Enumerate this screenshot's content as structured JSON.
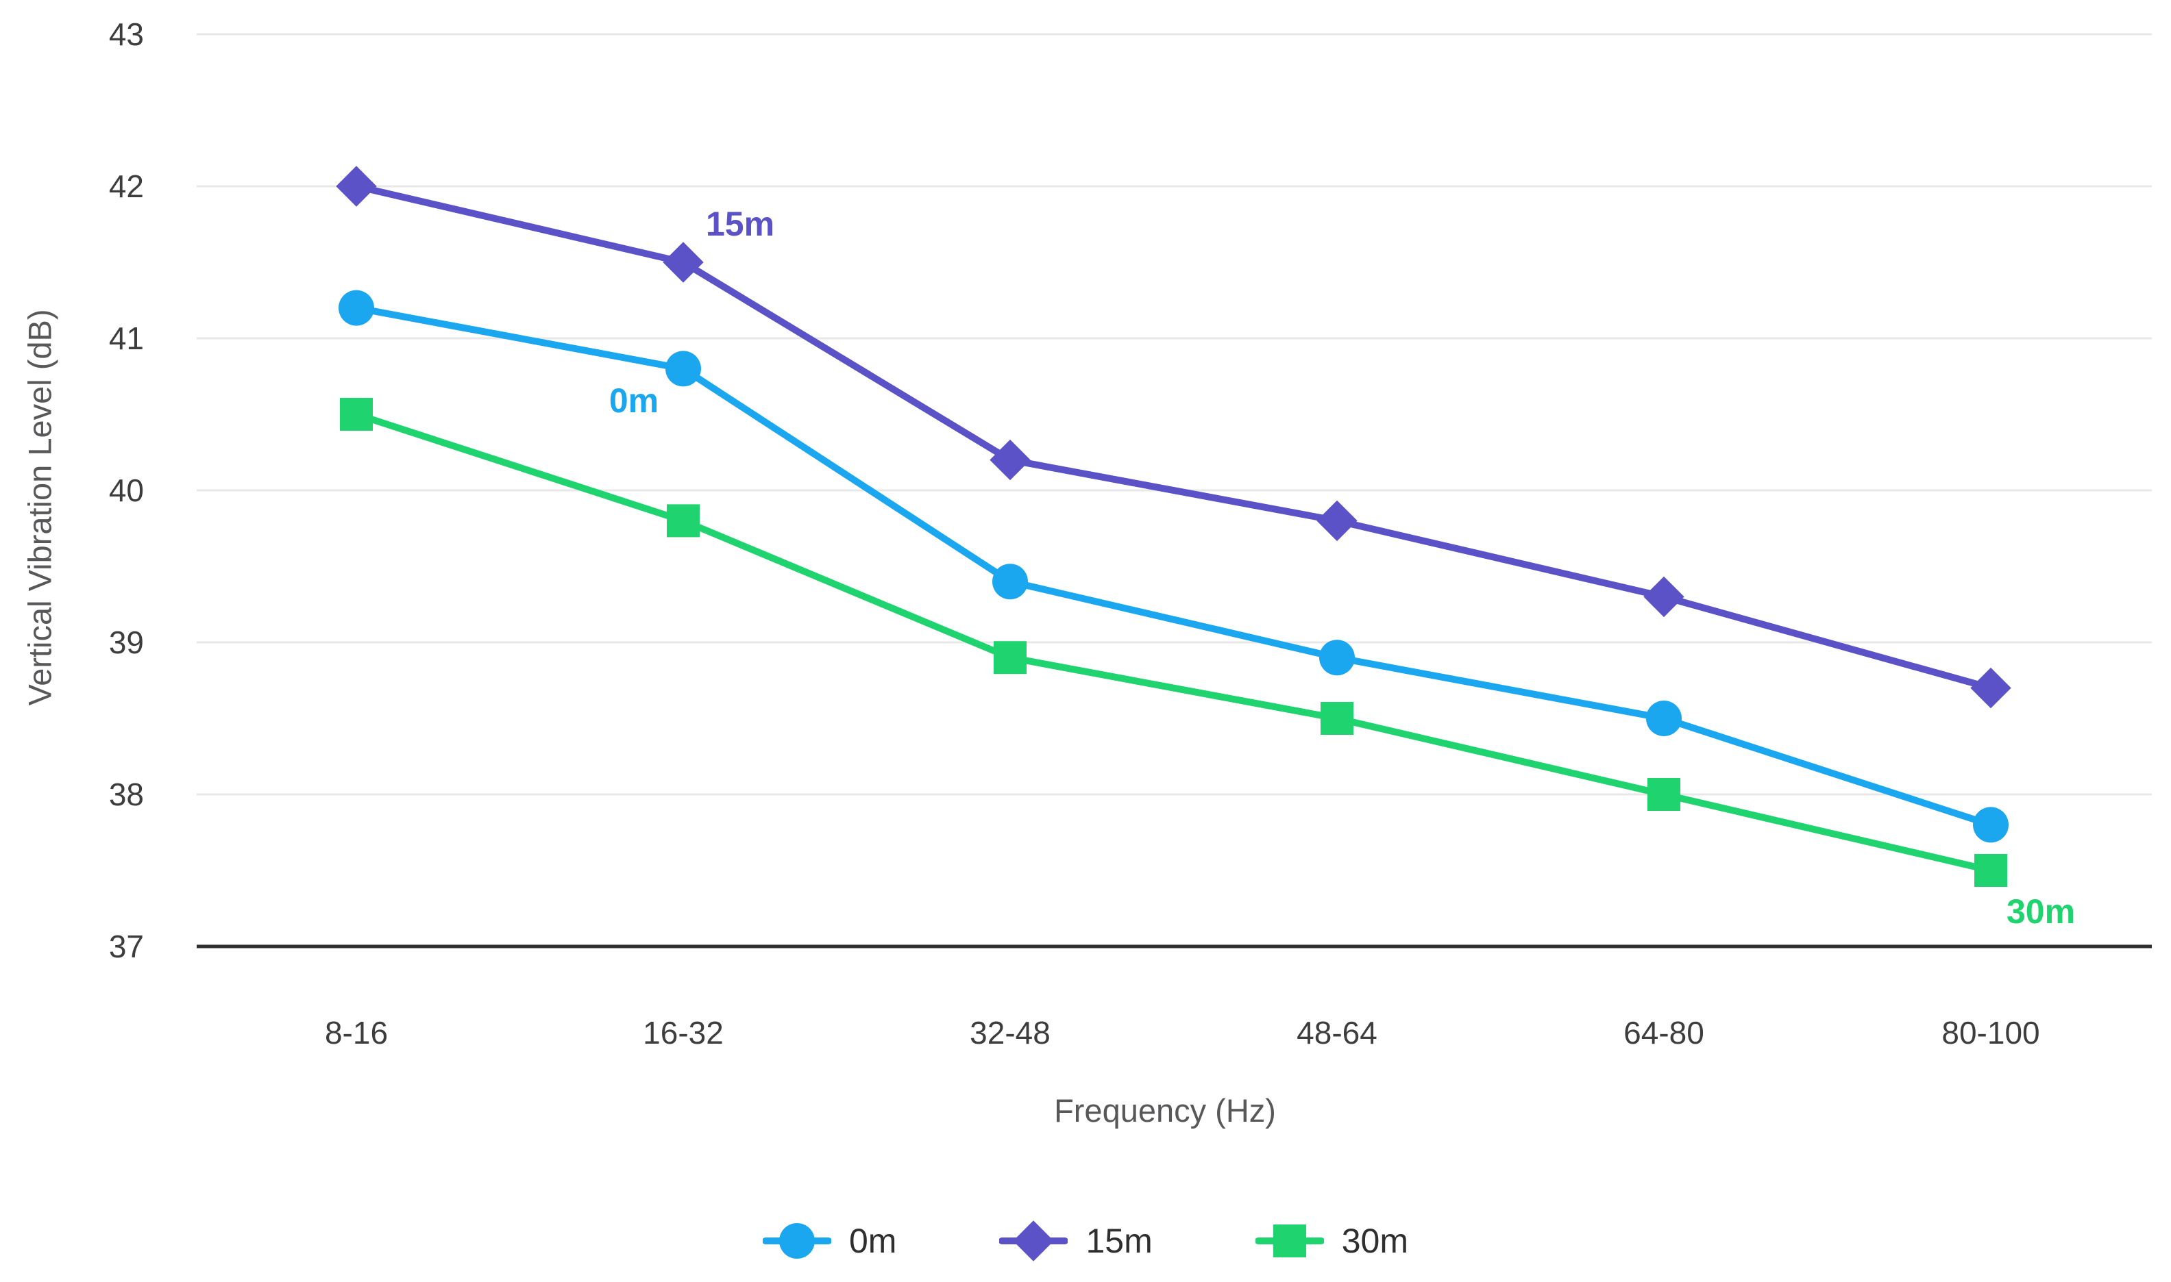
{
  "chart_data": {
    "type": "line",
    "title": "",
    "xlabel": "Frequency (Hz)",
    "ylabel": "Vertical Vibration Level (dB)",
    "categories": [
      "8-16",
      "16-32",
      "32-48",
      "48-64",
      "64-80",
      "80-100"
    ],
    "series": [
      {
        "name": "0m",
        "marker": "circle",
        "color": "#1aa7ef",
        "values": [
          41.2,
          40.8,
          39.4,
          38.9,
          38.5,
          37.8
        ]
      },
      {
        "name": "15m",
        "marker": "diamond",
        "color": "#5a52c6",
        "values": [
          42.0,
          41.5,
          40.2,
          39.8,
          39.3,
          38.7
        ]
      },
      {
        "name": "30m",
        "marker": "square",
        "color": "#1fd36e",
        "values": [
          40.5,
          39.8,
          38.9,
          38.5,
          38.0,
          37.5
        ]
      }
    ],
    "ylim": [
      37,
      43
    ],
    "yticks": [
      43,
      42,
      41,
      40,
      39,
      38,
      37
    ],
    "grid": "horizontal",
    "legend_position": "bottom",
    "annotations": [
      {
        "text": "15m",
        "series": "15m",
        "x": 1080,
        "y": 344
      },
      {
        "text": "0m",
        "series": "0m",
        "x": 925,
        "y": 602
      },
      {
        "text": "30m",
        "series": "30m",
        "x": 2978,
        "y": 1348
      }
    ]
  },
  "colors": {
    "gridline": "#e8e8e8",
    "axis_line": "#2e2e2e",
    "tick_label": "#3d3d3d",
    "axis_title": "#58585a",
    "background": "#ffffff"
  }
}
